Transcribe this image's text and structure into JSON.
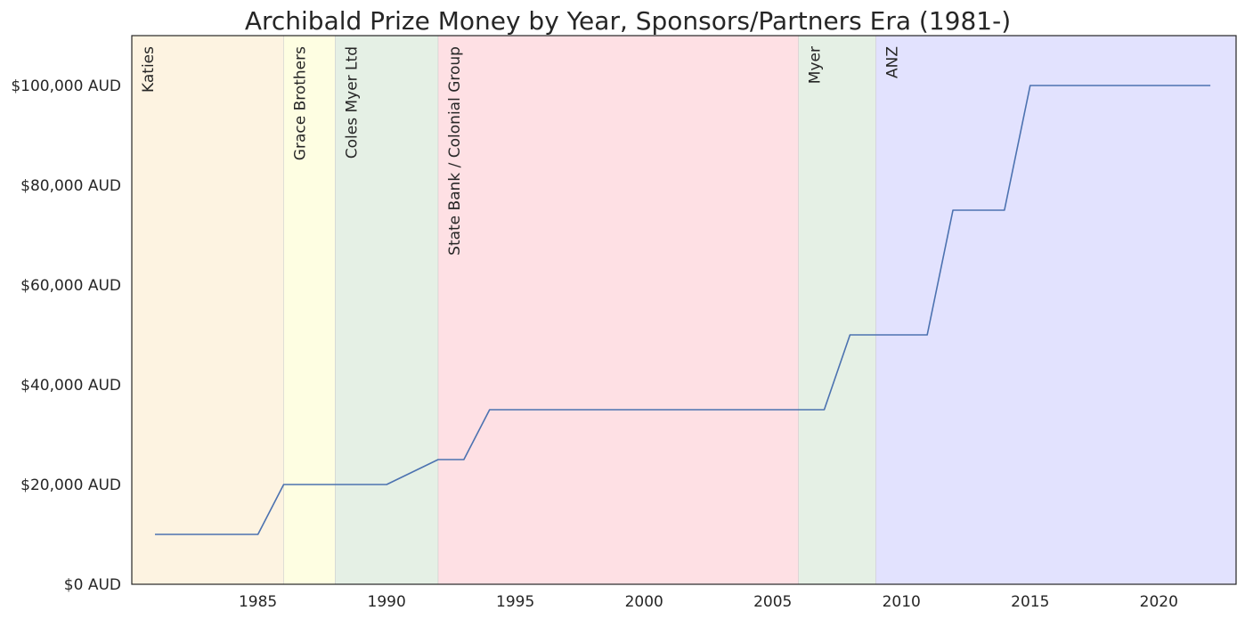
{
  "chart_data": {
    "type": "line",
    "title": "Archibald Prize Money by Year, Sponsors/Partners Era (1981-)",
    "xlabel": "",
    "ylabel": "",
    "xlim": [
      1980.1,
      2023.0
    ],
    "ylim": [
      0,
      110000
    ],
    "grid": false,
    "y_ticks": [
      {
        "value": 0,
        "label": "$0 AUD"
      },
      {
        "value": 20000,
        "label": "$20,000 AUD"
      },
      {
        "value": 40000,
        "label": "$40,000 AUD"
      },
      {
        "value": 60000,
        "label": "$60,000 AUD"
      },
      {
        "value": 80000,
        "label": "$80,000 AUD"
      },
      {
        "value": 100000,
        "label": "$100,000 AUD"
      }
    ],
    "x_ticks": [
      {
        "value": 1985,
        "label": "1985"
      },
      {
        "value": 1990,
        "label": "1990"
      },
      {
        "value": 1995,
        "label": "1995"
      },
      {
        "value": 2000,
        "label": "2000"
      },
      {
        "value": 2005,
        "label": "2005"
      },
      {
        "value": 2010,
        "label": "2010"
      },
      {
        "value": 2015,
        "label": "2015"
      },
      {
        "value": 2020,
        "label": "2020"
      }
    ],
    "sponsor_bands": [
      {
        "name": "Katies",
        "start": 1980.1,
        "end": 1986,
        "color": "#fdf3e1"
      },
      {
        "name": "Grace Brothers",
        "start": 1986,
        "end": 1988,
        "color": "#fefee2"
      },
      {
        "name": "Coles Myer Ltd",
        "start": 1988,
        "end": 1992,
        "color": "#e5f0e5"
      },
      {
        "name": "State Bank / Colonial Group",
        "start": 1992,
        "end": 2006,
        "color": "#fee0e4"
      },
      {
        "name": "Myer",
        "start": 2006,
        "end": 2009,
        "color": "#e5f0e5"
      },
      {
        "name": "ANZ",
        "start": 2009,
        "end": 2023.0,
        "color": "#e2e2fe"
      }
    ],
    "series": [
      {
        "color": "#4c72b0",
        "x": [
          1981,
          1982,
          1983,
          1984,
          1985,
          1986,
          1987,
          1988,
          1989,
          1990,
          1991,
          1992,
          1993,
          1994,
          1995,
          1996,
          1997,
          1998,
          1999,
          2000,
          2001,
          2002,
          2003,
          2004,
          2005,
          2006,
          2007,
          2008,
          2009,
          2010,
          2011,
          2012,
          2013,
          2014,
          2015,
          2016,
          2017,
          2018,
          2019,
          2020,
          2021,
          2022
        ],
        "values": [
          10000,
          10000,
          10000,
          10000,
          10000,
          20000,
          20000,
          20000,
          20000,
          20000,
          22500,
          25000,
          25000,
          35000,
          35000,
          35000,
          35000,
          35000,
          35000,
          35000,
          35000,
          35000,
          35000,
          35000,
          35000,
          35000,
          35000,
          50000,
          50000,
          50000,
          50000,
          75000,
          75000,
          75000,
          100000,
          100000,
          100000,
          100000,
          100000,
          100000,
          100000,
          100000
        ]
      }
    ]
  }
}
